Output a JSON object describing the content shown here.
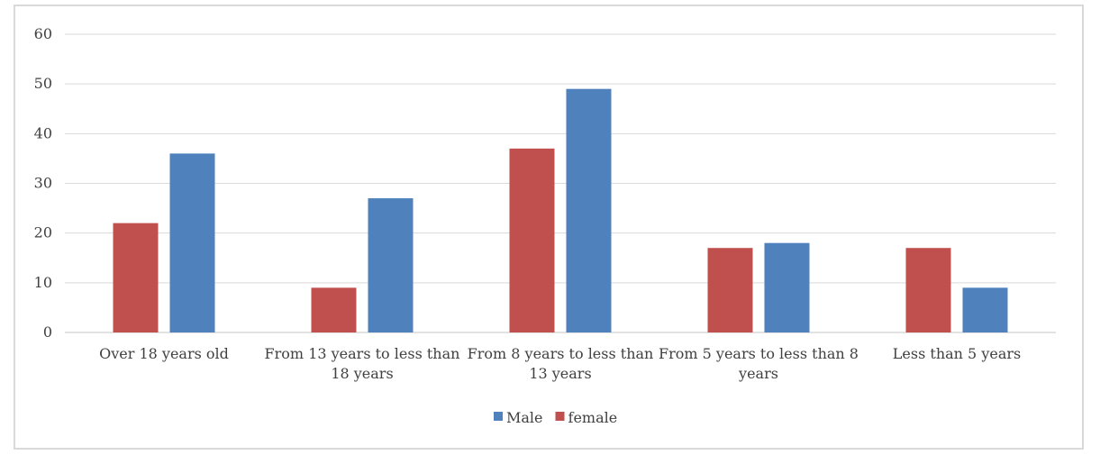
{
  "chart_data": {
    "type": "bar",
    "categories": [
      [
        "Over 18 years old"
      ],
      [
        "From 13 years to less than",
        "18 years"
      ],
      [
        "From 8 years to less than",
        "13 years"
      ],
      [
        "From 5 years to less than 8",
        "years"
      ],
      [
        "Less than 5 years"
      ]
    ],
    "series": [
      {
        "name": "female",
        "color": "#c0504d",
        "values": [
          22,
          9,
          37,
          17,
          17
        ]
      },
      {
        "name": "Male",
        "color": "#4f81bd",
        "values": [
          36,
          27,
          49,
          18,
          9
        ]
      }
    ],
    "legend_order": [
      "Male",
      "female"
    ],
    "legend_position": "bottom",
    "ylim": [
      0,
      60
    ],
    "yticks": [
      0,
      10,
      20,
      30,
      40,
      50,
      60
    ],
    "grid": true,
    "title": "",
    "xlabel": "",
    "ylabel": ""
  }
}
